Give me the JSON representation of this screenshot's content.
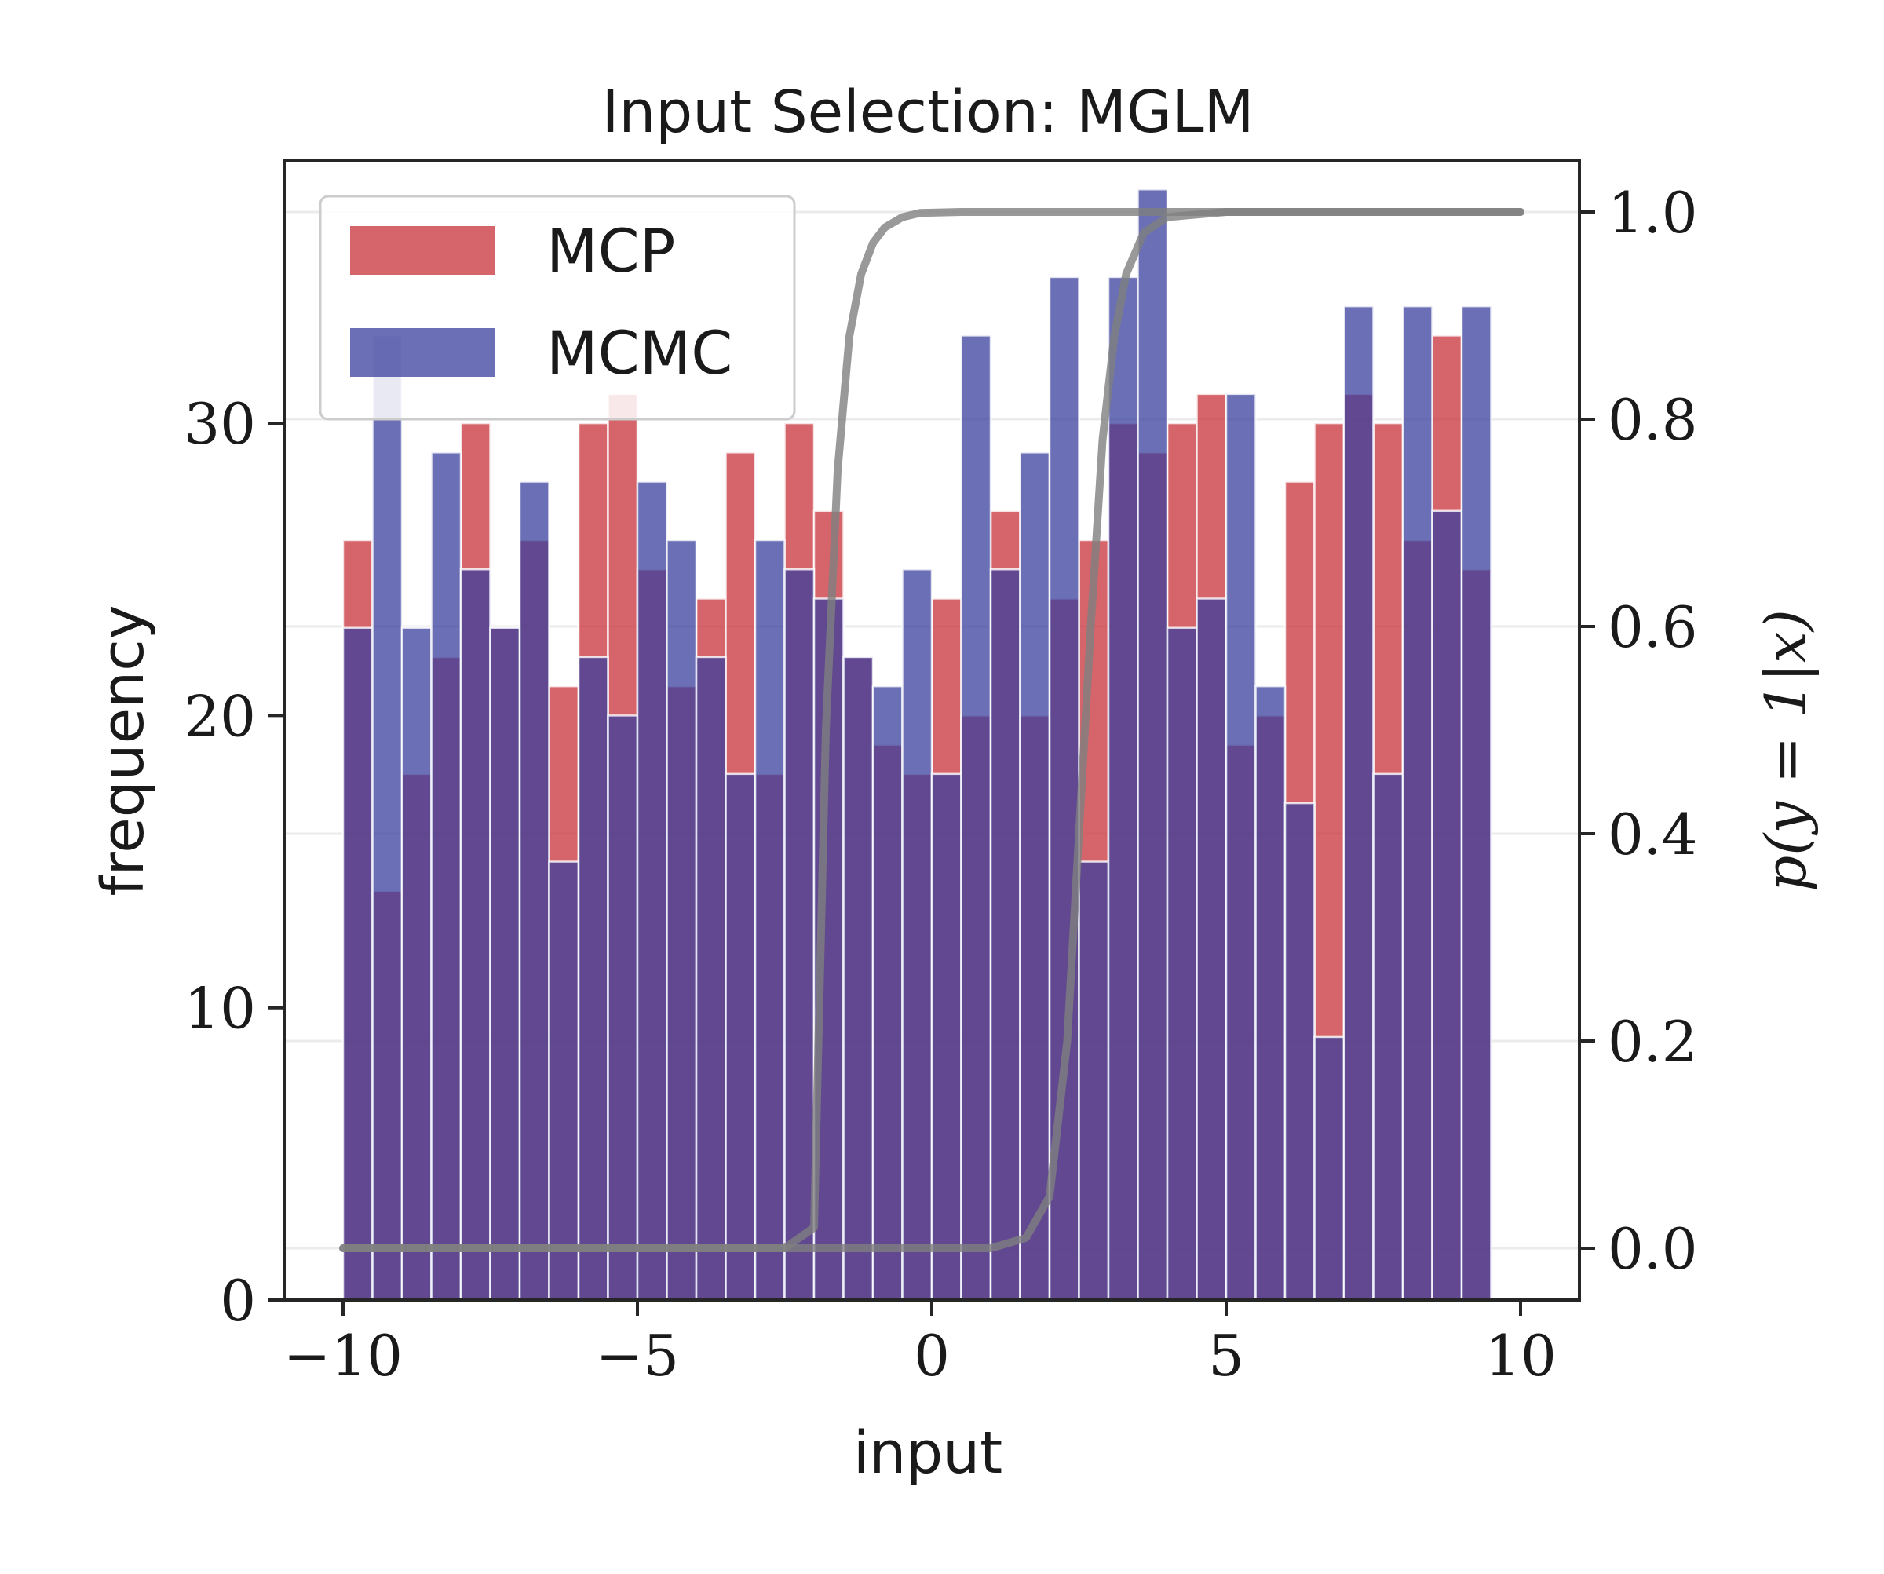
{
  "chart_data": {
    "type": "bar",
    "title": "Input Selection: MGLM",
    "xlabel": "input",
    "ylabel": "frequency",
    "y2label": "p(y = 1|x)",
    "xlim": [
      -11,
      11
    ],
    "ylim": [
      0,
      39
    ],
    "y2lim": [
      -0.05,
      1.05
    ],
    "xticks": [
      -10,
      -5,
      0,
      5,
      10
    ],
    "xtick_labels": [
      "−10",
      "−5",
      "0",
      "5",
      "10"
    ],
    "yticks": [
      0,
      10,
      20,
      30
    ],
    "ytick_labels": [
      "0",
      "10",
      "20",
      "30"
    ],
    "y2ticks": [
      0.0,
      0.2,
      0.4,
      0.6,
      0.8,
      1.0
    ],
    "y2tick_labels": [
      "0.0",
      "0.2",
      "0.4",
      "0.6",
      "0.8",
      "1.0"
    ],
    "grid": true,
    "legend_position": "top-left",
    "bin_edges": [
      -10,
      -9.5,
      -9,
      -8.5,
      -8,
      -7.5,
      -7,
      -6.5,
      -6,
      -5.5,
      -5,
      -4.5,
      -4,
      -3.5,
      -3,
      -2.5,
      -2,
      -1.5,
      -1,
      -0.5,
      0,
      0.5,
      1,
      1.5,
      2,
      2.5,
      3,
      3.5,
      4,
      4.5,
      5,
      5.5,
      6,
      6.5,
      7,
      7.5,
      8,
      8.5,
      9,
      9.5
    ],
    "series": [
      {
        "name": "MCP",
        "color": "#c8323a",
        "values": [
          26,
          14,
          18,
          22,
          30,
          23,
          26,
          21,
          30,
          31,
          25,
          21,
          24,
          29,
          18,
          30,
          27,
          22,
          19,
          18,
          24,
          20,
          27,
          20,
          24,
          26,
          30,
          29,
          30,
          31,
          19,
          20,
          28,
          30,
          31,
          30,
          26,
          33,
          25
        ]
      },
      {
        "name": "MCMC",
        "color": "#3a3f9c",
        "values": [
          23,
          33,
          23,
          29,
          25,
          23,
          28,
          15,
          22,
          20,
          28,
          26,
          22,
          18,
          26,
          25,
          24,
          22,
          21,
          25,
          18,
          33,
          25,
          29,
          35,
          15,
          35,
          38,
          23,
          24,
          31,
          21,
          17,
          9,
          34,
          18,
          34,
          27,
          34
        ]
      }
    ],
    "curves": [
      {
        "x": [
          -10,
          -2.5,
          -2.0,
          -1.8,
          -1.6,
          -1.4,
          -1.2,
          -1.0,
          -0.8,
          -0.5,
          -0.2,
          0.5,
          10
        ],
        "y": [
          0.0,
          0.0,
          0.02,
          0.5,
          0.75,
          0.88,
          0.94,
          0.97,
          0.985,
          0.995,
          0.999,
          1.0,
          1.0
        ]
      },
      {
        "x": [
          -10,
          1.0,
          1.6,
          2.0,
          2.3,
          2.5,
          2.7,
          2.9,
          3.1,
          3.3,
          3.6,
          4.0,
          5.0,
          10
        ],
        "y": [
          0.0,
          0.0,
          0.01,
          0.05,
          0.2,
          0.4,
          0.6,
          0.78,
          0.88,
          0.94,
          0.98,
          0.995,
          1.0,
          1.0
        ]
      }
    ]
  }
}
